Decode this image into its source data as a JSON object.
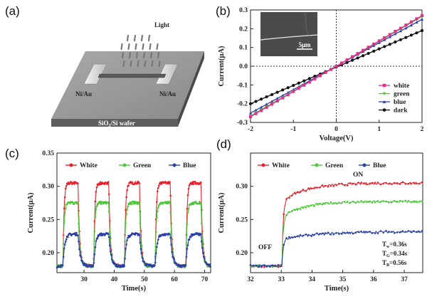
{
  "panels": {
    "a": {
      "letter": "(a)",
      "light_label": "Light",
      "electrode_left": "Ni/Au",
      "electrode_right": "Ni/Au",
      "substrate": "SiO",
      "substrate_sub": "2",
      "substrate_rest": "/Si wafer"
    },
    "b": {
      "letter": "(b)",
      "inset_scale": "5μm"
    },
    "c": {
      "letter": "(c)"
    },
    "d": {
      "letter": "(d)",
      "off_label": "OFF",
      "on_label": "ON",
      "times": [
        {
          "sym": "T",
          "sub": "w",
          "val": "=0.36s"
        },
        {
          "sym": "T",
          "sub": "G",
          "val": "=0.34s"
        },
        {
          "sym": "T",
          "sub": "B",
          "val": "=0.56s"
        }
      ]
    }
  },
  "colors": {
    "white": "#e8202a",
    "green": "#4cc63a",
    "blue": "#2a3fa8",
    "dark": "#111111",
    "pink": "#e0328a"
  },
  "chart_data": [
    {
      "id": "b",
      "type": "line",
      "xlabel": "Voltage(V)",
      "ylabel": "Current(μA)",
      "xlim": [
        -2,
        2
      ],
      "ylim": [
        -0.3,
        0.3
      ],
      "xticks": [
        -2,
        -1,
        0,
        1,
        2
      ],
      "yticks": [
        -0.3,
        -0.2,
        -0.1,
        0.0,
        0.1,
        0.2,
        0.3
      ],
      "ytick_labels": [
        "-0.3",
        "-0.2",
        "-0.1",
        "0.0",
        "0.1",
        "0.2",
        "0.3"
      ],
      "legend_position": "bottom-right",
      "series": [
        {
          "name": "white",
          "x": [
            -2,
            2
          ],
          "y": [
            -0.27,
            0.27
          ]
        },
        {
          "name": "green",
          "x": [
            -2,
            2
          ],
          "y": [
            -0.265,
            0.265
          ]
        },
        {
          "name": "blue",
          "x": [
            -2,
            2
          ],
          "y": [
            -0.25,
            0.25
          ]
        },
        {
          "name": "dark",
          "x": [
            -2,
            2
          ],
          "y": [
            -0.2,
            0.19
          ]
        }
      ]
    },
    {
      "id": "c",
      "type": "line",
      "xlabel": "Time(s)",
      "ylabel": "Current(μA)",
      "xlim": [
        21,
        72
      ],
      "ylim": [
        0.17,
        0.35
      ],
      "xticks": [
        30,
        40,
        50,
        60,
        70
      ],
      "yticks": [
        0.2,
        0.25,
        0.3,
        0.35
      ],
      "ytick_labels": [
        "0.20",
        "0.25",
        "0.30",
        "0.35"
      ],
      "legend_position": "top",
      "cycles_on": [
        23,
        33.2,
        43.4,
        53.6,
        63.8
      ],
      "on_duration": 5,
      "series": [
        {
          "name": "White",
          "base": 0.18,
          "plateau": 0.305
        },
        {
          "name": "Green",
          "base": 0.18,
          "plateau": 0.275
        },
        {
          "name": "Blue",
          "base": 0.18,
          "plateau": 0.228
        }
      ]
    },
    {
      "id": "d",
      "type": "line",
      "xlabel": "Time(s)",
      "ylabel": "Current(μA)",
      "xlim": [
        32,
        37.6
      ],
      "ylim": [
        0.17,
        0.35
      ],
      "xticks": [
        32,
        33,
        34,
        35,
        36,
        37
      ],
      "yticks": [
        0.2,
        0.25,
        0.3
      ],
      "ytick_labels": [
        "0.20",
        "0.25",
        "0.30"
      ],
      "legend_position": "top",
      "on_time": 33.02,
      "series": [
        {
          "name": "White",
          "base": 0.18,
          "plateau": 0.305
        },
        {
          "name": "Green",
          "base": 0.18,
          "plateau": 0.277
        },
        {
          "name": "Blue",
          "base": 0.18,
          "plateau": 0.232
        }
      ]
    }
  ]
}
